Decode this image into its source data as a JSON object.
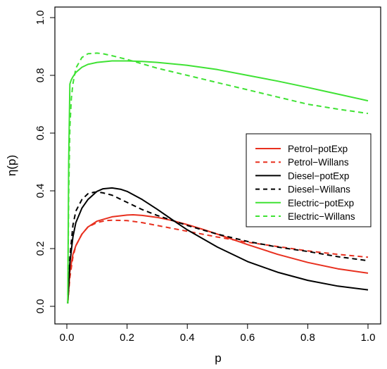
{
  "chart_data": {
    "type": "line",
    "xlabel": "p",
    "ylabel": "η(p)",
    "xlim": [
      0,
      1
    ],
    "ylim": [
      0,
      1
    ],
    "x_ticks": [
      "0.0",
      "0.2",
      "0.4",
      "0.6",
      "0.8",
      "1.0"
    ],
    "y_ticks": [
      "0.0",
      "0.2",
      "0.4",
      "0.6",
      "0.8",
      "1.0"
    ],
    "grid": false,
    "legend_position": "right",
    "series": [
      {
        "name": "Petrol−potExp",
        "color": "#e8301f",
        "dash": "solid",
        "x": [
          0.003,
          0.01,
          0.02,
          0.03,
          0.05,
          0.07,
          0.1,
          0.15,
          0.2,
          0.22,
          0.25,
          0.3,
          0.35,
          0.4,
          0.45,
          0.5,
          0.55,
          0.6,
          0.7,
          0.8,
          0.9,
          1.0
        ],
        "y": [
          0.01,
          0.12,
          0.18,
          0.21,
          0.25,
          0.275,
          0.295,
          0.31,
          0.316,
          0.317,
          0.315,
          0.308,
          0.297,
          0.283,
          0.267,
          0.25,
          0.232,
          0.214,
          0.18,
          0.152,
          0.13,
          0.115
        ]
      },
      {
        "name": "Petrol−Willans",
        "color": "#e8301f",
        "dash": "dashed",
        "x": [
          0.003,
          0.01,
          0.02,
          0.03,
          0.05,
          0.07,
          0.1,
          0.13,
          0.15,
          0.2,
          0.25,
          0.3,
          0.4,
          0.5,
          0.6,
          0.7,
          0.8,
          0.9,
          1.0
        ],
        "y": [
          0.01,
          0.1,
          0.17,
          0.21,
          0.25,
          0.275,
          0.29,
          0.297,
          0.298,
          0.297,
          0.29,
          0.28,
          0.26,
          0.24,
          0.222,
          0.207,
          0.192,
          0.18,
          0.17
        ]
      },
      {
        "name": "Diesel−potExp",
        "color": "#000000",
        "dash": "solid",
        "x": [
          0.003,
          0.01,
          0.02,
          0.03,
          0.05,
          0.07,
          0.1,
          0.12,
          0.15,
          0.18,
          0.2,
          0.25,
          0.3,
          0.35,
          0.4,
          0.5,
          0.6,
          0.7,
          0.8,
          0.9,
          1.0
        ],
        "y": [
          0.01,
          0.15,
          0.24,
          0.29,
          0.34,
          0.37,
          0.398,
          0.407,
          0.41,
          0.405,
          0.398,
          0.37,
          0.336,
          0.3,
          0.265,
          0.205,
          0.155,
          0.118,
          0.09,
          0.07,
          0.057
        ]
      },
      {
        "name": "Diesel−Willans",
        "color": "#000000",
        "dash": "dashed",
        "x": [
          0.003,
          0.01,
          0.02,
          0.03,
          0.05,
          0.07,
          0.09,
          0.1,
          0.12,
          0.15,
          0.2,
          0.25,
          0.3,
          0.4,
          0.5,
          0.6,
          0.7,
          0.8,
          0.9,
          1.0
        ],
        "y": [
          0.01,
          0.17,
          0.28,
          0.33,
          0.37,
          0.39,
          0.395,
          0.396,
          0.393,
          0.385,
          0.36,
          0.335,
          0.315,
          0.28,
          0.25,
          0.225,
          0.205,
          0.19,
          0.172,
          0.158
        ]
      },
      {
        "name": "Electric−potExp",
        "color": "#3fe234",
        "dash": "solid",
        "x": [
          0.003,
          0.006,
          0.01,
          0.015,
          0.02,
          0.03,
          0.05,
          0.07,
          0.1,
          0.15,
          0.2,
          0.25,
          0.3,
          0.4,
          0.5,
          0.6,
          0.7,
          0.8,
          0.9,
          1.0
        ],
        "y": [
          0.01,
          0.5,
          0.77,
          0.785,
          0.795,
          0.81,
          0.828,
          0.838,
          0.845,
          0.85,
          0.85,
          0.848,
          0.845,
          0.835,
          0.82,
          0.8,
          0.78,
          0.758,
          0.735,
          0.712
        ]
      },
      {
        "name": "Electric−Willans",
        "color": "#3fe234",
        "dash": "dashed",
        "x": [
          0.003,
          0.006,
          0.01,
          0.015,
          0.02,
          0.03,
          0.05,
          0.07,
          0.1,
          0.12,
          0.15,
          0.2,
          0.25,
          0.3,
          0.4,
          0.5,
          0.6,
          0.7,
          0.8,
          0.9,
          1.0
        ],
        "y": [
          0.01,
          0.38,
          0.62,
          0.72,
          0.77,
          0.825,
          0.862,
          0.875,
          0.877,
          0.875,
          0.868,
          0.855,
          0.84,
          0.825,
          0.8,
          0.775,
          0.75,
          0.725,
          0.7,
          0.683,
          0.668
        ]
      }
    ]
  }
}
